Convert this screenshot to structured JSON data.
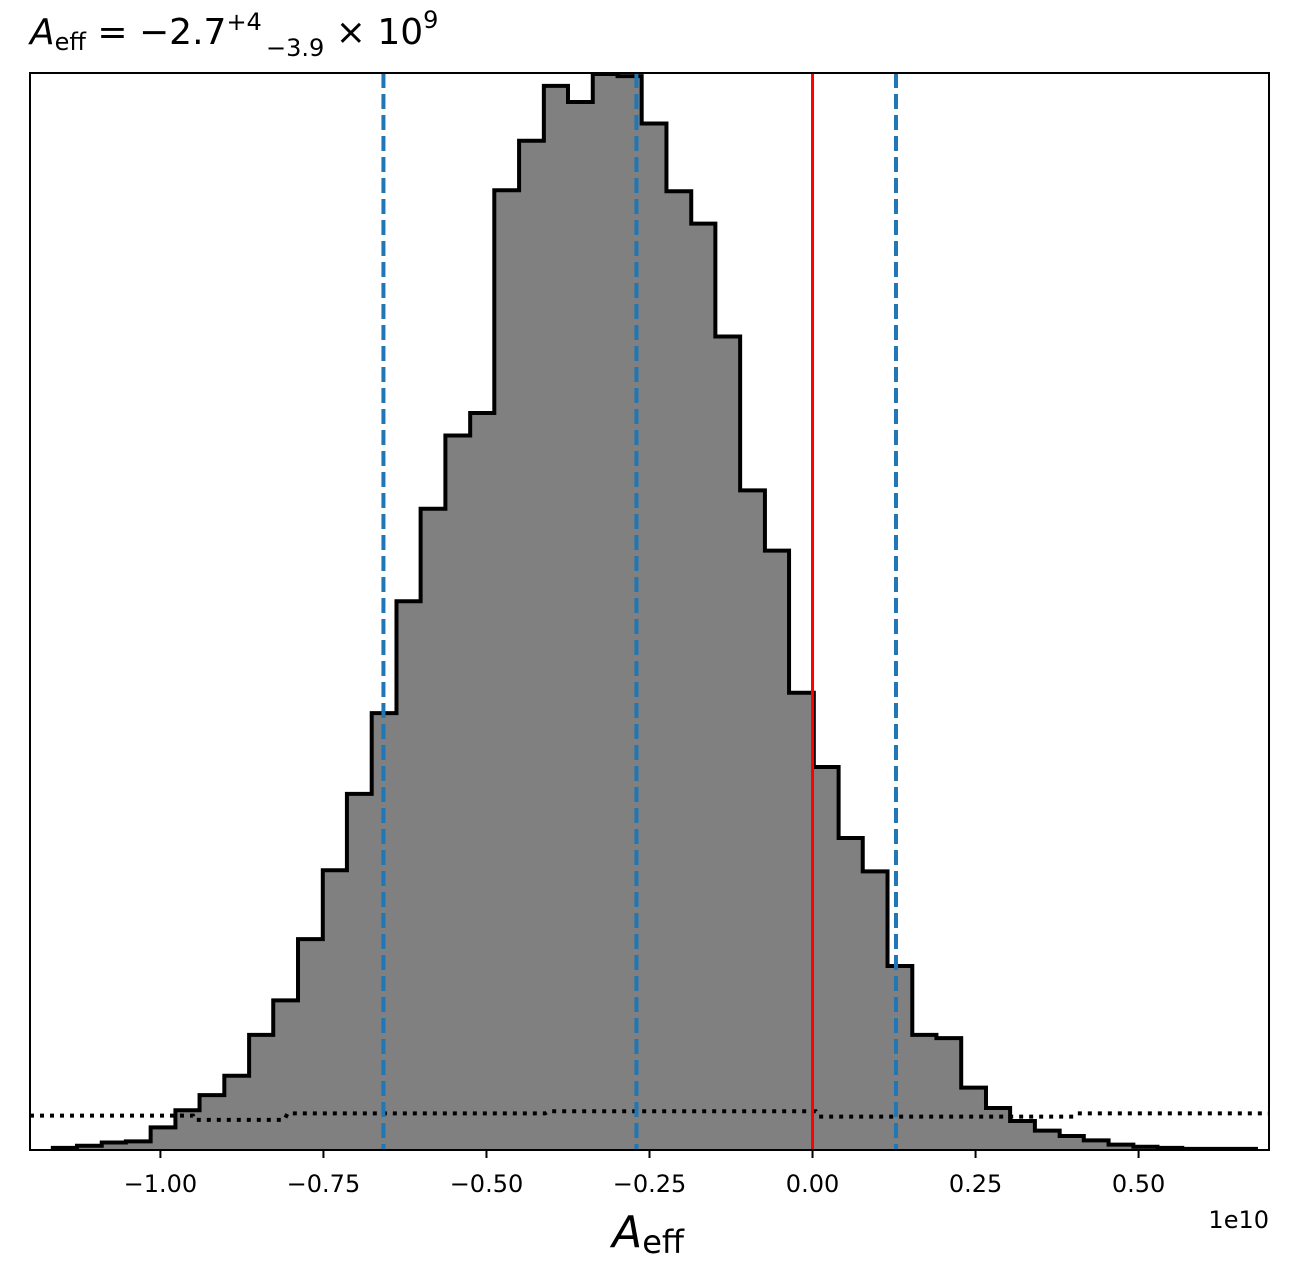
{
  "chart_data": {
    "type": "histogram",
    "title": {
      "symbol": "A",
      "symbol_subscript": "eff",
      "equals": " = ",
      "median": "−2.7",
      "err_plus": "+4",
      "err_minus": "−3.9",
      "multiplier": " × 10",
      "exponent": "9"
    },
    "xlabel": {
      "symbol": "A",
      "subscript": "eff"
    },
    "x_offset_label": "1e10",
    "x_scale": 10000000000.0,
    "xlim": [
      -1.2,
      0.7
    ],
    "ylim": [
      0,
      1.0
    ],
    "xticks": [
      -1.0,
      -0.75,
      -0.5,
      -0.25,
      0.0,
      0.25,
      0.5
    ],
    "xtick_labels": [
      "−1.00",
      "−0.75",
      "−0.50",
      "−0.25",
      "0.00",
      "0.25",
      "0.50"
    ],
    "grid": false,
    "histogram": {
      "bin_edges": [
        -1.165,
        -1.128,
        -1.09,
        -1.053,
        -1.015,
        -0.977,
        -0.94,
        -0.902,
        -0.864,
        -0.827,
        -0.789,
        -0.751,
        -0.714,
        -0.676,
        -0.638,
        -0.601,
        -0.563,
        -0.525,
        -0.488,
        -0.45,
        -0.412,
        -0.375,
        -0.337,
        -0.299,
        -0.262,
        -0.224,
        -0.186,
        -0.149,
        -0.111,
        -0.073,
        -0.036,
        0.002,
        0.04,
        0.077,
        0.115,
        0.153,
        0.19,
        0.228,
        0.266,
        0.303,
        0.341,
        0.379,
        0.416,
        0.454,
        0.492,
        0.529,
        0.567,
        0.605,
        0.642,
        0.68
      ],
      "values": [
        0.002,
        0.004,
        0.007,
        0.008,
        0.021,
        0.037,
        0.051,
        0.069,
        0.107,
        0.139,
        0.196,
        0.26,
        0.331,
        0.406,
        0.51,
        0.596,
        0.664,
        0.685,
        0.892,
        0.938,
        0.989,
        0.974,
        1.0,
        0.998,
        0.954,
        0.891,
        0.861,
        0.756,
        0.613,
        0.557,
        0.425,
        0.356,
        0.29,
        0.259,
        0.171,
        0.107,
        0.104,
        0.058,
        0.039,
        0.027,
        0.018,
        0.013,
        0.009,
        0.005,
        0.003,
        0.002,
        0.001,
        0.001,
        0.001
      ],
      "fill_color": "#808080",
      "edge_color": "#000000"
    },
    "prior_line": {
      "style": "dotted",
      "color": "#000000",
      "points": [
        {
          "x": -1.2,
          "y": 0.032
        },
        {
          "x": -0.95,
          "y": 0.032
        },
        {
          "x": -0.948,
          "y": 0.028
        },
        {
          "x": -0.81,
          "y": 0.028
        },
        {
          "x": -0.805,
          "y": 0.034
        },
        {
          "x": -0.41,
          "y": 0.034
        },
        {
          "x": -0.405,
          "y": 0.036
        },
        {
          "x": 0.005,
          "y": 0.036
        },
        {
          "x": 0.01,
          "y": 0.031
        },
        {
          "x": 0.4,
          "y": 0.031
        },
        {
          "x": 0.405,
          "y": 0.034
        },
        {
          "x": 0.7,
          "y": 0.034
        }
      ]
    },
    "vlines": [
      {
        "x": -0.658,
        "color": "#1f77b4",
        "style": "dashed",
        "name": "lower-quantile"
      },
      {
        "x": -0.27,
        "color": "#1f77b4",
        "style": "dashed",
        "name": "median"
      },
      {
        "x": 0.128,
        "color": "#1f77b4",
        "style": "dashed",
        "name": "upper-quantile"
      },
      {
        "x": 0.0,
        "color": "#ff0000",
        "style": "solid",
        "name": "true-value"
      }
    ]
  }
}
